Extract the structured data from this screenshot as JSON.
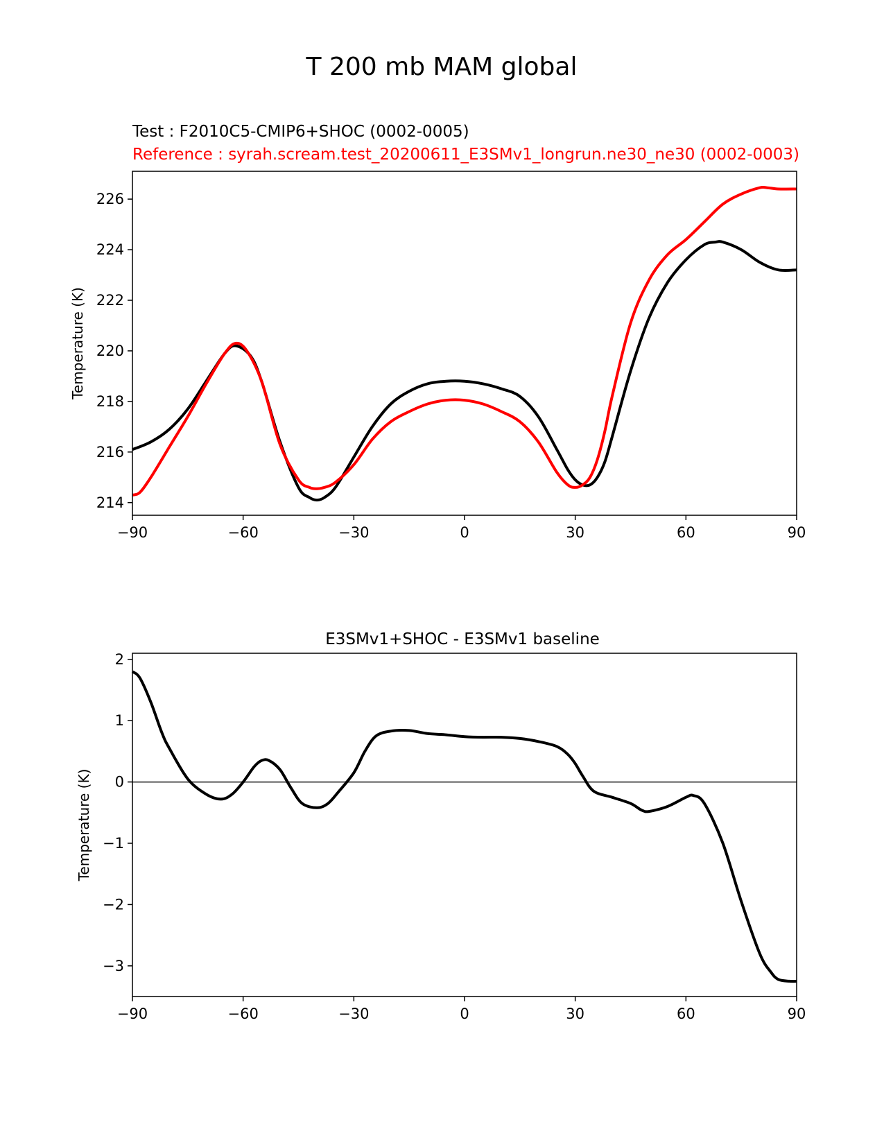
{
  "suptitle": "T 200 mb MAM global",
  "chart_data": [
    {
      "type": "line",
      "test_label": "Test : F2010C5-CMIP6+SHOC (0002-0005)",
      "reference_label": "Reference : syrah.scream.test_20200611_E3SMv1_longrun.ne30_ne30 (0002-0003)",
      "title": "",
      "xlabel": "",
      "ylabel": "Temperature (K)",
      "xlim": [
        -90,
        90
      ],
      "ylim": [
        213.5,
        227.1
      ],
      "xticks": [
        -90,
        -60,
        -30,
        0,
        30,
        60,
        90
      ],
      "xtick_labels": [
        "−90",
        "−60",
        "−30",
        "0",
        "30",
        "60",
        "90"
      ],
      "yticks": [
        214,
        216,
        218,
        220,
        222,
        224,
        226
      ],
      "ytick_labels": [
        "214",
        "216",
        "218",
        "220",
        "222",
        "224",
        "226"
      ],
      "zero_line": false,
      "series": [
        {
          "name": "Test",
          "color": "#000000",
          "x": [
            -90,
            -85,
            -80,
            -75,
            -70,
            -65,
            -62,
            -58,
            -55,
            -50,
            -45,
            -42,
            -40,
            -38,
            -35,
            -30,
            -25,
            -20,
            -15,
            -10,
            -5,
            0,
            5,
            10,
            15,
            20,
            25,
            28,
            30,
            32,
            34,
            36,
            38,
            40,
            45,
            50,
            55,
            60,
            65,
            68,
            70,
            75,
            80,
            85,
            90
          ],
          "y": [
            216.1,
            216.4,
            216.9,
            217.7,
            218.8,
            219.9,
            220.2,
            219.8,
            218.8,
            216.4,
            214.6,
            214.2,
            214.1,
            214.2,
            214.6,
            215.8,
            217.0,
            217.9,
            218.4,
            218.7,
            218.8,
            218.8,
            218.7,
            218.5,
            218.2,
            217.4,
            216.1,
            215.3,
            214.9,
            214.7,
            214.7,
            215.0,
            215.6,
            216.6,
            219.2,
            221.3,
            222.7,
            223.6,
            224.2,
            224.3,
            224.3,
            224.0,
            223.5,
            223.2,
            223.2
          ]
        },
        {
          "name": "Reference",
          "color": "#ff0000",
          "x": [
            -90,
            -88,
            -85,
            -80,
            -75,
            -70,
            -65,
            -62,
            -59,
            -55,
            -50,
            -45,
            -42,
            -40,
            -38,
            -35,
            -30,
            -25,
            -20,
            -15,
            -10,
            -5,
            0,
            5,
            10,
            15,
            20,
            25,
            28,
            30,
            32,
            34,
            36,
            38,
            40,
            45,
            50,
            55,
            60,
            65,
            70,
            75,
            80,
            82,
            85,
            90
          ],
          "y": [
            214.3,
            214.4,
            215.0,
            216.2,
            217.4,
            218.7,
            219.9,
            220.3,
            220.0,
            218.8,
            216.3,
            214.9,
            214.6,
            214.55,
            214.6,
            214.8,
            215.5,
            216.5,
            217.2,
            217.6,
            217.9,
            218.05,
            218.05,
            217.9,
            217.6,
            217.2,
            216.4,
            215.2,
            214.7,
            214.6,
            214.7,
            215.0,
            215.7,
            216.8,
            218.2,
            221.1,
            222.8,
            223.8,
            224.4,
            225.1,
            225.8,
            226.2,
            226.45,
            226.45,
            226.4,
            226.4
          ]
        }
      ]
    },
    {
      "type": "line",
      "title": "E3SMv1+SHOC - E3SMv1 baseline",
      "xlabel": "",
      "ylabel": "Temperature (K)",
      "xlim": [
        -90,
        90
      ],
      "ylim": [
        -3.5,
        2.1
      ],
      "xticks": [
        -90,
        -60,
        -30,
        0,
        30,
        60,
        90
      ],
      "xtick_labels": [
        "−90",
        "−60",
        "−30",
        "0",
        "30",
        "60",
        "90"
      ],
      "yticks": [
        -3,
        -2,
        -1,
        0,
        1,
        2
      ],
      "ytick_labels": [
        "−3",
        "−2",
        "−1",
        "0",
        "1",
        "2"
      ],
      "zero_line": true,
      "series": [
        {
          "name": "Difference",
          "color": "#000000",
          "x": [
            -90,
            -88,
            -85,
            -82,
            -80,
            -75,
            -70,
            -66,
            -63,
            -60,
            -57,
            -55,
            -53,
            -50,
            -47,
            -44,
            -40,
            -37,
            -34,
            -30,
            -27,
            -24,
            -20,
            -15,
            -10,
            -5,
            0,
            5,
            10,
            15,
            20,
            25,
            28,
            30,
            32,
            35,
            40,
            45,
            48,
            50,
            55,
            60,
            62,
            65,
            70,
            75,
            80,
            83,
            85,
            88,
            90
          ],
          "y": [
            1.8,
            1.7,
            1.3,
            0.8,
            0.55,
            0.05,
            -0.2,
            -0.28,
            -0.2,
            0.0,
            0.25,
            0.35,
            0.35,
            0.2,
            -0.1,
            -0.35,
            -0.42,
            -0.35,
            -0.15,
            0.15,
            0.5,
            0.75,
            0.83,
            0.84,
            0.79,
            0.77,
            0.74,
            0.73,
            0.73,
            0.71,
            0.66,
            0.58,
            0.45,
            0.3,
            0.1,
            -0.15,
            -0.25,
            -0.35,
            -0.46,
            -0.48,
            -0.4,
            -0.25,
            -0.22,
            -0.35,
            -1.0,
            -1.95,
            -2.8,
            -3.1,
            -3.22,
            -3.25,
            -3.25
          ]
        }
      ]
    }
  ]
}
